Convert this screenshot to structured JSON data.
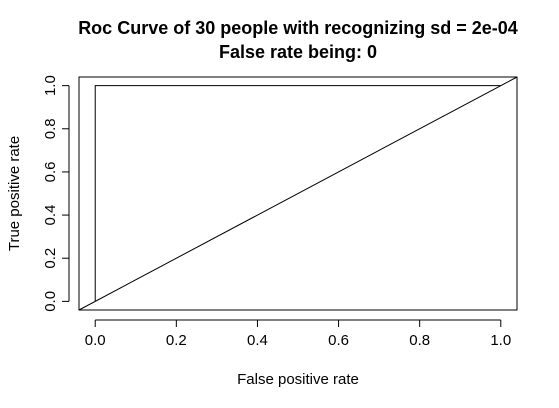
{
  "chart_data": {
    "type": "line",
    "title_lines": [
      "Roc Curve of 30 people with recognizing sd = 2e-04",
      "False rate being: 0"
    ],
    "xlabel": "False positive rate",
    "ylabel": "True positive rate",
    "xlim": [
      -0.04,
      1.04
    ],
    "ylim": [
      -0.04,
      1.04
    ],
    "x_ticks": [
      0.0,
      0.2,
      0.4,
      0.6,
      0.8,
      1.0
    ],
    "x_tick_labels": [
      "0.0",
      "0.2",
      "0.4",
      "0.6",
      "0.8",
      "1.0"
    ],
    "y_ticks": [
      0.0,
      0.2,
      0.4,
      0.6,
      0.8,
      1.0
    ],
    "y_tick_labels": [
      "0.0",
      "0.2",
      "0.4",
      "0.6",
      "0.8",
      "1.0"
    ],
    "grid": false,
    "series": [
      {
        "x": [
          0,
          0,
          1
        ],
        "y": [
          0,
          1,
          1
        ],
        "color": "#000000"
      },
      {
        "x": [
          -0.04,
          1.04
        ],
        "y": [
          -0.04,
          1.04
        ],
        "color": "#000000"
      }
    ]
  }
}
